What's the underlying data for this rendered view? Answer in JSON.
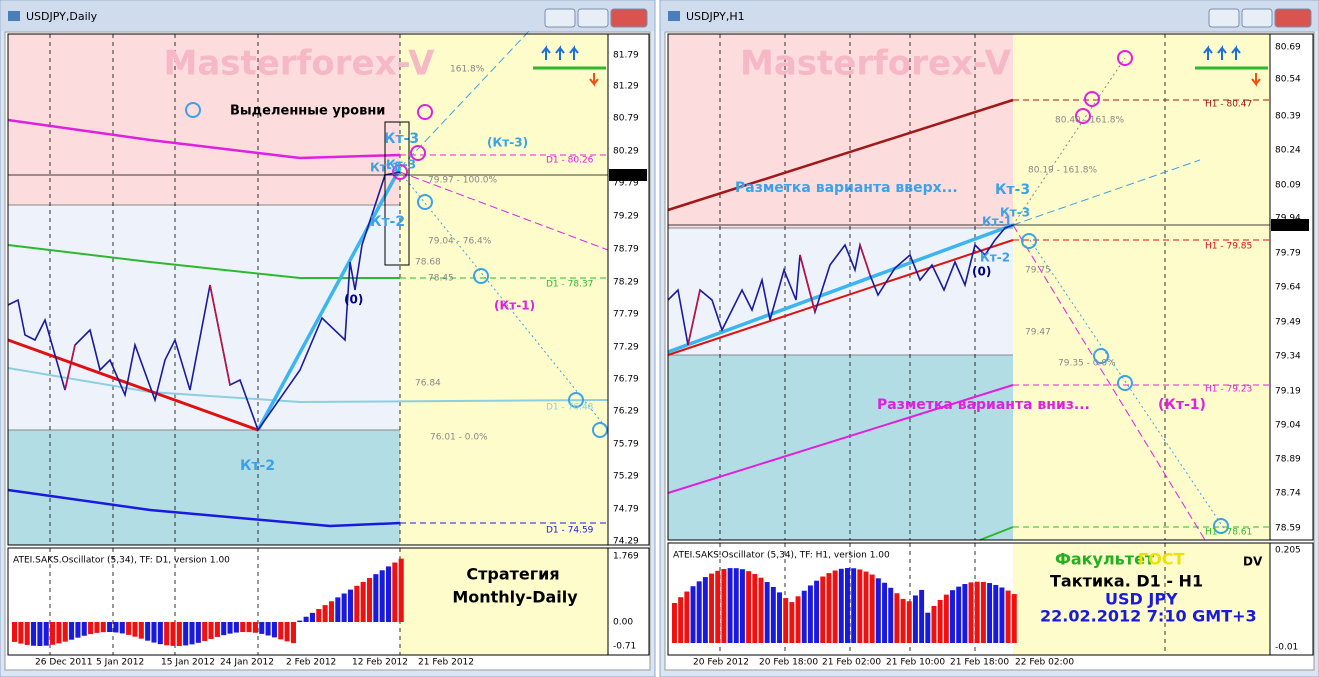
{
  "windows": [
    {
      "title": "USDJPY,Daily",
      "watermark": "Masterforex-V",
      "price_labels": [
        "81.79",
        "81.29",
        "80.79",
        "80.29",
        "79.79",
        "79.29",
        "78.79",
        "78.29",
        "77.79",
        "77.29",
        "76.79",
        "76.29",
        "75.79",
        "75.29",
        "74.79",
        "74.29"
      ],
      "current_price": "79.92",
      "oscillator": {
        "label": "ATEI.SAKS.Oscillator (5,34), TF: D1, version 1.00",
        "ticks": [
          "1.769",
          "0.00",
          "-0.71"
        ]
      },
      "dates": [
        "26 Dec 2011",
        "5 Jan 2012",
        "15 Jan 2012",
        "24 Jan 2012",
        "2 Feb 2012",
        "12 Feb 2012",
        "21 Feb 2012"
      ],
      "annotations": [
        "Выделенные уровни",
        "Кт-3",
        "(Кт-3)",
        "Кт-1",
        "Кт-3",
        "Кт-2",
        "(0)",
        "(Кт-1)",
        "Кт-2"
      ],
      "level_labels": [
        "D1 - 80.26",
        "D1 - 78.37",
        "D1 - 76.48",
        "D1 - 74.59"
      ],
      "fibo_labels": [
        "161.8%",
        "79.97 - 100.0%",
        "79.04 - 76.4%",
        "78.68",
        "78.45",
        "76.84",
        "76.01 - 0.0%"
      ],
      "caption": [
        "Стратегия",
        "Monthly-Daily"
      ]
    },
    {
      "title": "USDJPY,H1",
      "watermark": "Masterforex-V",
      "price_labels": [
        "80.69",
        "80.54",
        "80.39",
        "80.24",
        "80.09",
        "79.94",
        "79.79",
        "79.64",
        "79.49",
        "79.34",
        "79.19",
        "79.04",
        "78.89",
        "78.74",
        "78.59"
      ],
      "current_price": "79.92",
      "oscillator": {
        "label": "ATEI.SAKS.Oscillator (5,34), TF: H1, version 1.00",
        "ticks": [
          "0.205",
          "-0.01"
        ]
      },
      "dates": [
        "20 Feb 2012",
        "20 Feb 18:00",
        "21 Feb 02:00",
        "21 Feb 10:00",
        "21 Feb 18:00",
        "22 Feb 02:00"
      ],
      "annotations": [
        "Разметка варианта вверх...",
        "Кт-3",
        "Кт-1",
        "Кт-3",
        "Кт-2",
        "(0)",
        "Разметка варианта вниз...",
        "(Кт-1)"
      ],
      "level_labels": [
        "H1 - 80.47",
        "H1 - 79.85",
        "H1 - 79.23",
        "H1 - 78.61"
      ],
      "fibo_labels": [
        "80.40 - 161.8%",
        "80.19 - 161.8%",
        "79.75",
        "79.47",
        "79.35 - 0.0%"
      ],
      "caption": [
        "Факультет",
        "ГОСТ",
        "DV",
        "Тактика. D1 - H1",
        "USD JPY",
        "22.02.2012 7:10 GMT+3"
      ]
    }
  ]
}
